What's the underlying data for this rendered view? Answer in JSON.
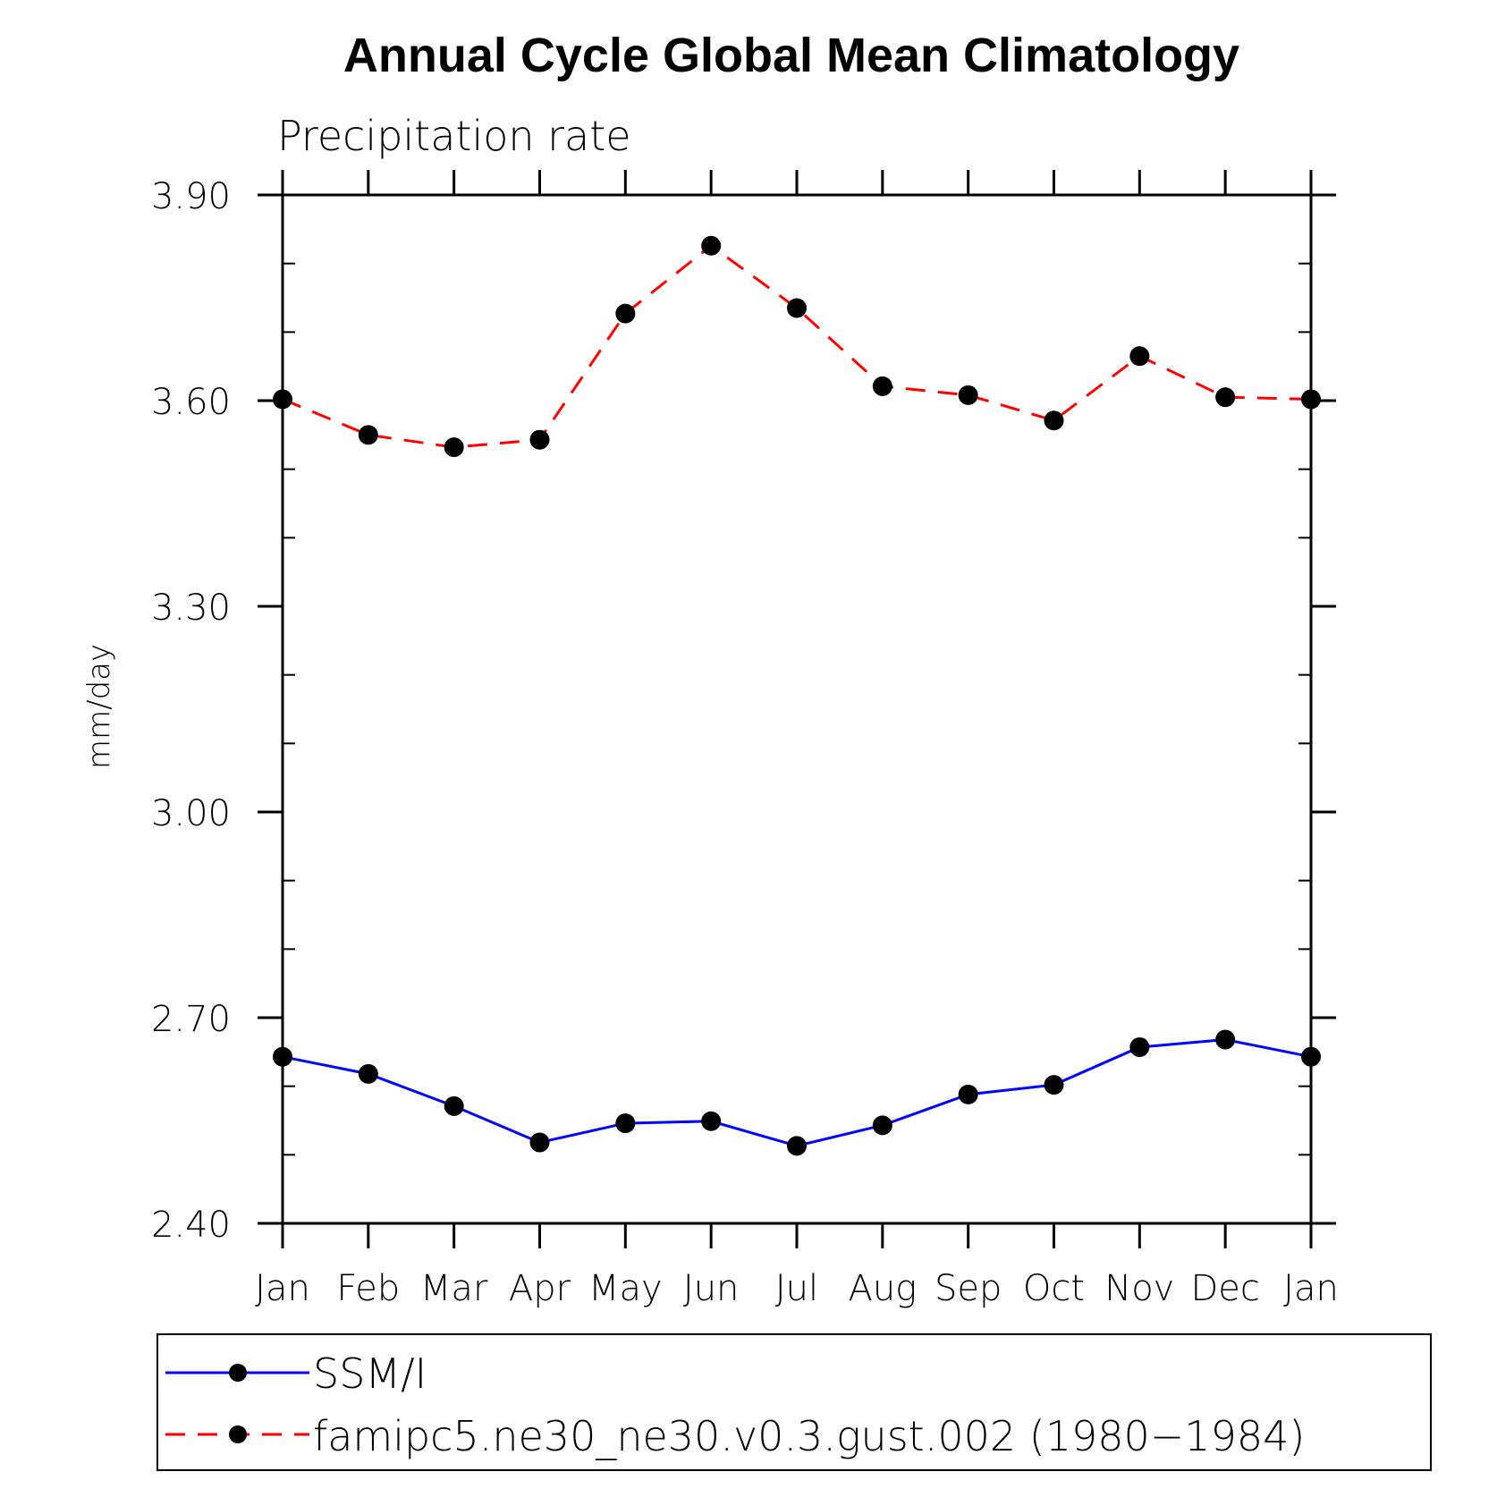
{
  "chart_data": {
    "type": "line",
    "title": "Annual Cycle Global Mean Climatology",
    "subtitle": "Precipitation rate",
    "ylabel": "mm/day",
    "xlabel": "",
    "categories": [
      "Jan",
      "Feb",
      "Mar",
      "Apr",
      "May",
      "Jun",
      "Jul",
      "Aug",
      "Sep",
      "Oct",
      "Nov",
      "Dec",
      "Jan"
    ],
    "ylim": [
      2.4,
      3.9
    ],
    "yticks": [
      2.4,
      2.7,
      3.0,
      3.3,
      3.6,
      3.9
    ],
    "ytick_labels": [
      "2.40",
      "2.70",
      "3.00",
      "3.30",
      "3.60",
      "3.90"
    ],
    "grid": false,
    "legend_position": "bottom",
    "series": [
      {
        "name": "SSM/I",
        "color": "#0000ff",
        "line_style": "solid",
        "marker": "filled-circle",
        "values": [
          2.643,
          2.618,
          2.571,
          2.518,
          2.546,
          2.549,
          2.513,
          2.543,
          2.588,
          2.602,
          2.657,
          2.668,
          2.643
        ]
      },
      {
        "name": "famipc5.ne30_ne30.v0.3.gust.002 (1980−1984)",
        "color": "#ff0000",
        "line_style": "dashed",
        "marker": "filled-circle",
        "values": [
          3.602,
          3.55,
          3.532,
          3.543,
          3.727,
          3.826,
          3.735,
          3.621,
          3.608,
          3.571,
          3.665,
          3.605,
          3.602
        ]
      }
    ]
  }
}
